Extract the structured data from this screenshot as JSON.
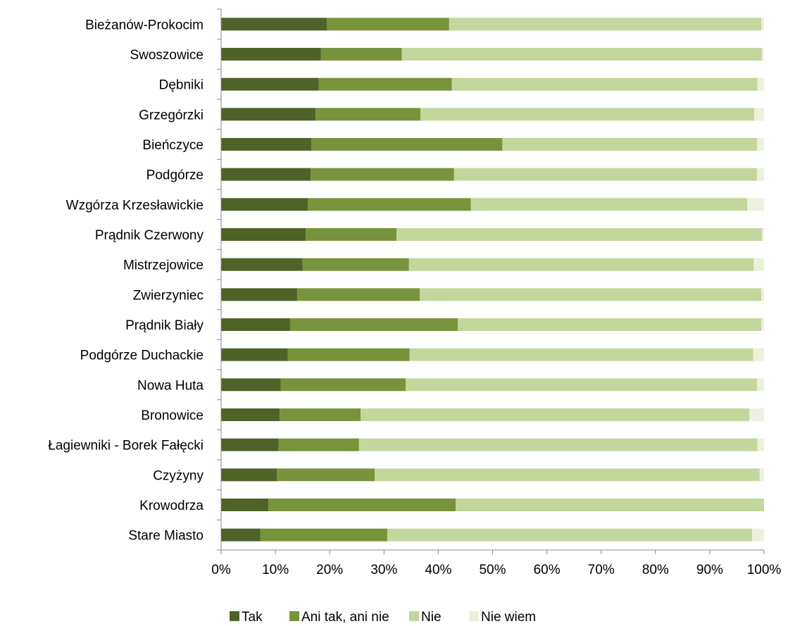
{
  "chart_data": {
    "type": "bar",
    "orientation": "horizontal",
    "stacked": true,
    "categories": [
      "Bieżanów-Prokocim",
      "Swoszowice",
      "Dębniki",
      "Grzegórzki",
      "Bieńczyce",
      "Podgórze",
      "Wzgórza Krzesławickie",
      "Prądnik Czerwony",
      "Mistrzejowice",
      "Zwierzyniec",
      "Prądnik Biały",
      "Podgórze Duchackie",
      "Nowa Huta",
      "Bronowice",
      "Łagiewniki - Borek Fałęcki",
      "Czyżyny",
      "Krowodrza",
      "Stare Miasto"
    ],
    "series": [
      {
        "name": "Tak",
        "color": "#4f6228",
        "values": [
          19.5,
          18.4,
          18.0,
          17.4,
          16.6,
          16.5,
          16.0,
          15.6,
          15.0,
          14.0,
          12.7,
          12.3,
          11.0,
          10.8,
          10.6,
          10.3,
          8.7,
          7.2
        ]
      },
      {
        "name": "Ani tak, ani nie",
        "color": "#77933c",
        "values": [
          22.5,
          14.9,
          24.5,
          19.3,
          35.2,
          26.4,
          30.0,
          16.7,
          19.6,
          22.6,
          30.9,
          22.4,
          23.0,
          14.9,
          14.8,
          18.0,
          34.5,
          23.4
        ]
      },
      {
        "name": "Nie",
        "color": "#c3d69b",
        "values": [
          57.5,
          66.3,
          56.3,
          61.5,
          46.9,
          55.8,
          50.9,
          67.3,
          63.5,
          62.9,
          55.9,
          63.3,
          64.7,
          71.6,
          73.4,
          70.9,
          56.8,
          67.2
        ]
      },
      {
        "name": "Nie wiem",
        "color": "#ebf1de",
        "values": [
          0.5,
          0.4,
          1.2,
          1.8,
          1.3,
          1.3,
          3.1,
          0.4,
          1.9,
          0.5,
          0.5,
          2.0,
          1.3,
          2.7,
          1.2,
          0.8,
          0.0,
          2.2
        ]
      }
    ],
    "x_ticks": [
      "0%",
      "10%",
      "20%",
      "30%",
      "40%",
      "50%",
      "60%",
      "70%",
      "80%",
      "90%",
      "100%"
    ],
    "xlim": [
      0,
      100
    ],
    "x_unit": "%",
    "grid": false,
    "legend_position": "bottom"
  }
}
